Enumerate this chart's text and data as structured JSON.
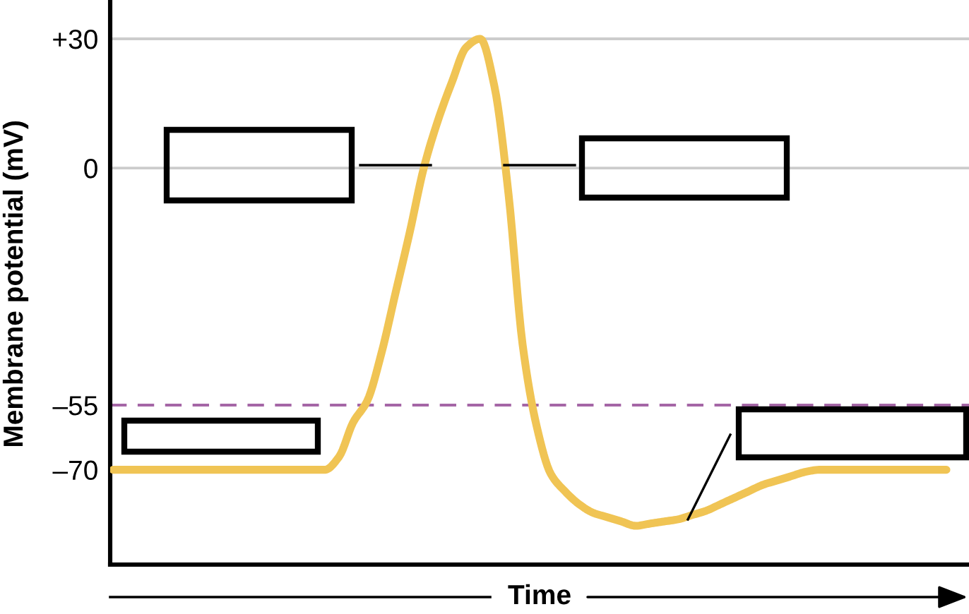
{
  "chart_data": {
    "type": "line",
    "xlabel": "Time",
    "ylabel": "Membrane potential (mV)",
    "categories": [
      null,
      null,
      null,
      null,
      null,
      null,
      null,
      null,
      null,
      null,
      null,
      null,
      null,
      null,
      null,
      null,
      null,
      null,
      null,
      null,
      null,
      null,
      null,
      null,
      null,
      null,
      null,
      null,
      null,
      null,
      null,
      null,
      null,
      null,
      null,
      null,
      null,
      null,
      null,
      null,
      null,
      null,
      null,
      null,
      null,
      null,
      null,
      null,
      null,
      null,
      null,
      null,
      null,
      null,
      null,
      null,
      null,
      null,
      null,
      null
    ],
    "series": [
      {
        "color": "#f0c454",
        "values": [
          -70,
          -70,
          -70,
          -70,
          -70,
          -70,
          -70,
          -70,
          -70,
          -70,
          -70,
          -70,
          -70,
          -70,
          -70,
          -70,
          -67,
          -59,
          -54,
          -43,
          -29,
          -15,
          0,
          11,
          20,
          28,
          30,
          19,
          -6,
          -41,
          -60,
          -71,
          -75,
          -78,
          -80,
          -81,
          -82,
          -83,
          -82.5,
          -82,
          -81.5,
          -80.5,
          -79.5,
          -78,
          -76.5,
          -75,
          -73.5,
          -72.5,
          -71.5,
          -70.5,
          -70,
          -70,
          -70,
          -70,
          -70,
          -70,
          -70,
          -70,
          -70,
          -70
        ]
      }
    ],
    "ylim": [
      -92,
      39
    ],
    "yticks": [
      {
        "value": -70,
        "label": "–70"
      },
      {
        "value": -55,
        "label": "–55"
      },
      0,
      {
        "value": 30,
        "label": "+30"
      }
    ],
    "ref_lines": [
      {
        "axis": "y",
        "value": 30,
        "color": "#cccccc"
      },
      {
        "axis": "y",
        "value": 0,
        "color": "#cccccc"
      },
      {
        "axis": "y",
        "value": -55,
        "color": "#a566a6",
        "line_style": "dashed"
      }
    ],
    "tick_labels": "y"
  }
}
